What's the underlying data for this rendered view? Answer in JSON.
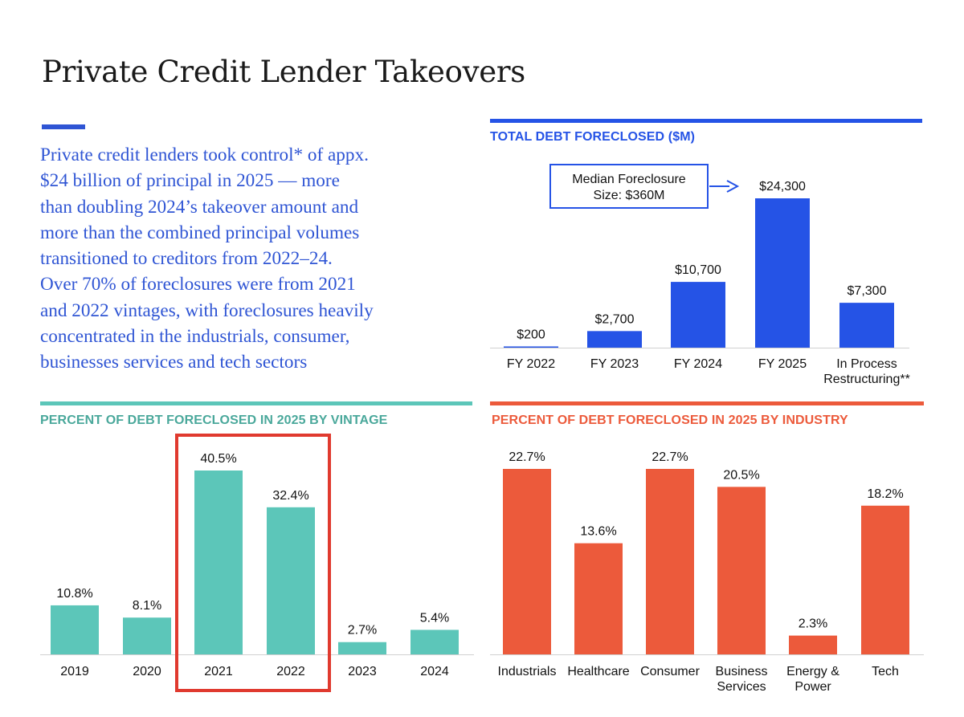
{
  "page": {
    "title": "Private Credit Lender Takeovers",
    "intro_lines": [
      "Private credit lenders took control* of appx.",
      "$24 billion of principal in 2025 — more",
      "than doubling 2024’s takeover amount and",
      "more than the combined principal volumes",
      "transitioned to creditors from 2022–24.",
      "Over 70% of foreclosures were from 2021",
      "and 2022 vintages, with foreclosures heavily",
      "concentrated in the industrials, consumer,",
      "businesses services and tech sectors"
    ]
  },
  "colors": {
    "blue": "#2553e6",
    "teal": "#5cc6b9",
    "orange": "#ec5a3b",
    "highlight": "#e03a2f",
    "intro_text": "#2f55d4"
  },
  "chart_data": [
    {
      "id": "total-debt",
      "type": "bar",
      "title": "TOTAL DEBT FORECLOSED ($M)",
      "categories": [
        "FY 2022",
        "FY 2023",
        "FY 2024",
        "FY 2025",
        "In Process\nRestructuring**"
      ],
      "values": [
        200,
        2700,
        10700,
        24300,
        7300
      ],
      "value_labels": [
        "$200",
        "$2,700",
        "$10,700",
        "$24,300",
        "$7,300"
      ],
      "ylim": [
        0,
        24300
      ],
      "xlabel": "",
      "ylabel": "",
      "annotation": {
        "text": [
          "Median Foreclosure",
          "Size: $360M"
        ],
        "points_to": "FY 2025"
      }
    },
    {
      "id": "vintage",
      "type": "bar",
      "title": "PERCENT OF DEBT FORECLOSED IN 2025 BY VINTAGE",
      "categories": [
        "2019",
        "2020",
        "2021",
        "2022",
        "2023",
        "2024"
      ],
      "values": [
        10.8,
        8.1,
        40.5,
        32.4,
        2.7,
        5.4
      ],
      "value_labels": [
        "10.8%",
        "8.1%",
        "40.5%",
        "32.4%",
        "2.7%",
        "5.4%"
      ],
      "ylim": [
        0,
        40.5
      ],
      "highlighted": [
        "2021",
        "2022"
      ],
      "xlabel": "",
      "ylabel": ""
    },
    {
      "id": "industry",
      "type": "bar",
      "title": "PERCENT OF DEBT FORECLOSED IN 2025 BY INDUSTRY",
      "categories": [
        "Industrials",
        "Healthcare",
        "Consumer",
        "Business\nServices",
        "Energy &\nPower",
        "Tech"
      ],
      "values": [
        22.7,
        13.6,
        22.7,
        20.5,
        2.3,
        18.2
      ],
      "value_labels": [
        "22.7%",
        "13.6%",
        "22.7%",
        "20.5%",
        "2.3%",
        "18.2%"
      ],
      "ylim": [
        0,
        22.7
      ],
      "xlabel": "",
      "ylabel": ""
    }
  ]
}
